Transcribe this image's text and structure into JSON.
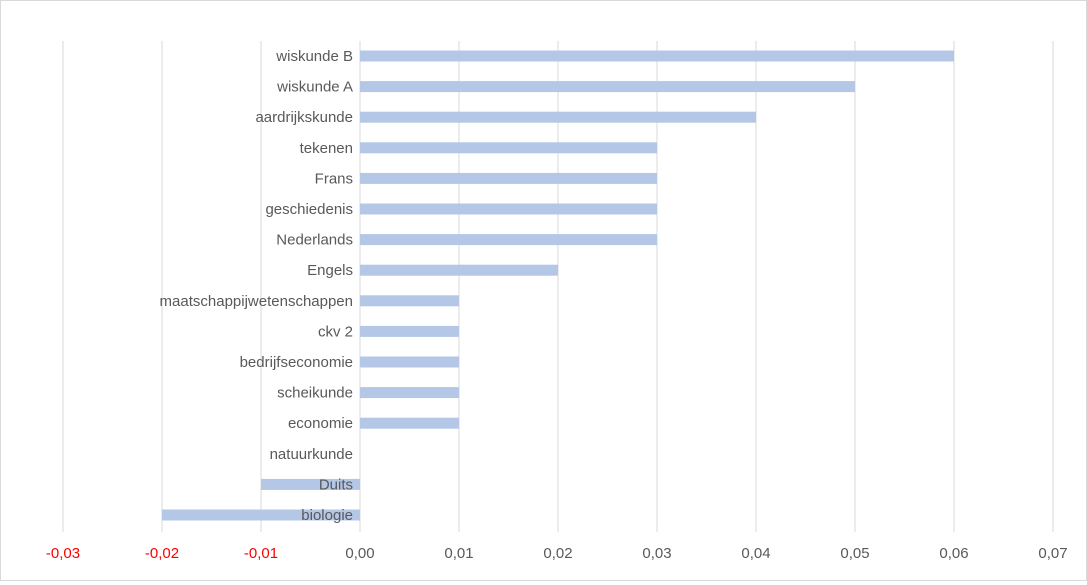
{
  "chart_data": {
    "type": "bar",
    "orientation": "horizontal",
    "title": "",
    "xlabel": "",
    "ylabel": "",
    "categories": [
      "wiskunde B",
      "wiskunde A",
      "aardrijkskunde",
      "tekenen",
      "Frans",
      "geschiedenis",
      "Nederlands",
      "Engels",
      "maatschappijwetenschappen",
      "ckv 2",
      "bedrijfseconomie",
      "scheikunde",
      "economie",
      "natuurkunde",
      "Duits",
      "biologie"
    ],
    "values": [
      0.06,
      0.05,
      0.04,
      0.03,
      0.03,
      0.03,
      0.03,
      0.02,
      0.01,
      0.01,
      0.01,
      0.01,
      0.01,
      0.0,
      -0.01,
      -0.02
    ],
    "xlim": [
      -0.03,
      0.07
    ],
    "x_ticks": [
      "-0,03",
      "-0,02",
      "-0,01",
      "0,00",
      "0,01",
      "0,02",
      "0,03",
      "0,04",
      "0,05",
      "0,06",
      "0,07"
    ],
    "negative_tick_color": "#ff0000",
    "tick_color": "#595959",
    "bar_color": "#b4c7e7",
    "grid_color": "#d9d9d9",
    "grid": true,
    "legend": "none"
  }
}
